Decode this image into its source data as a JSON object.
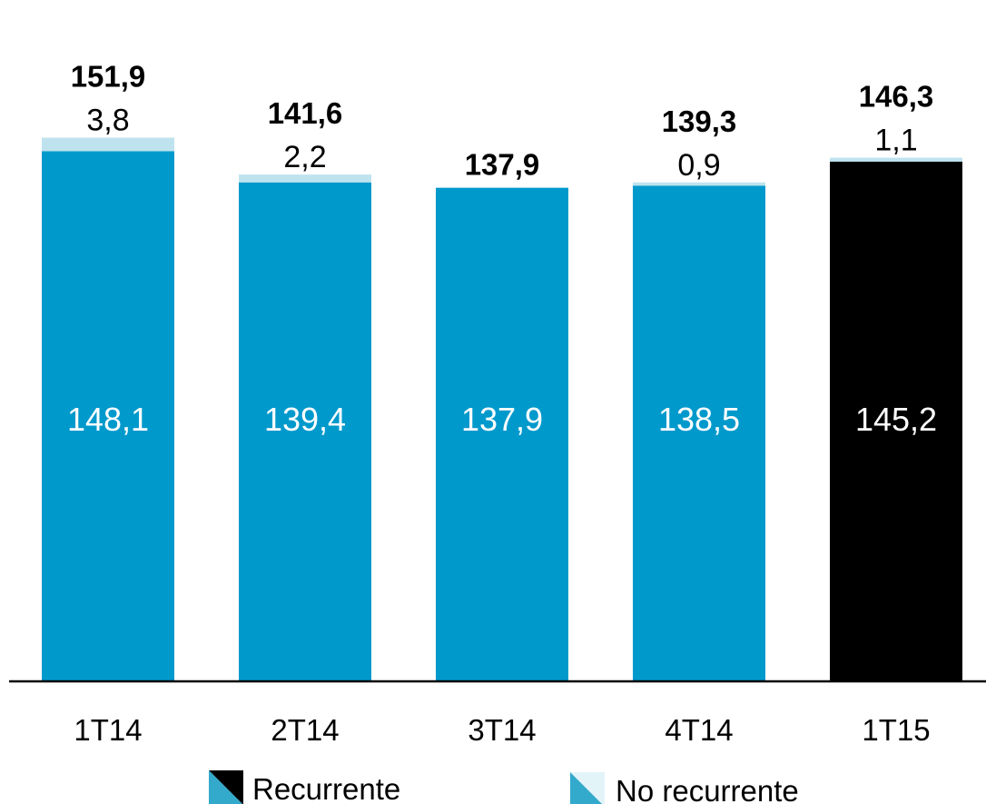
{
  "chart_data": {
    "type": "bar",
    "stacked": true,
    "categories": [
      "1T14",
      "2T14",
      "3T14",
      "4T14",
      "1T15"
    ],
    "series": [
      {
        "name": "Recurrente",
        "values": [
          148.1,
          139.4,
          137.9,
          138.5,
          145.2
        ],
        "labels": [
          "148,1",
          "139,4",
          "137,9",
          "138,5",
          "145,2"
        ]
      },
      {
        "name": "No recurrente",
        "values": [
          3.8,
          2.2,
          0.0,
          0.9,
          1.1
        ],
        "labels": [
          "3,8",
          "2,2",
          "",
          "0,9",
          "1,1"
        ]
      }
    ],
    "totals": [
      151.9,
      141.6,
      137.9,
      139.3,
      146.3
    ],
    "total_labels": [
      "151,9",
      "141,6",
      "137,9",
      "139,3",
      "146,3"
    ],
    "highlight_index": 4,
    "ylim": [
      0,
      160
    ],
    "grid": false,
    "legend_position": "bottom",
    "title": "",
    "xlabel": "",
    "ylabel": ""
  },
  "colors": {
    "recurring": "#0099CC",
    "recurring_highlight": "#000000",
    "non_recurring": "#BFE3EE",
    "legend_recurring_light": "#33AACC",
    "legend_nonrec_light": "#E3F4F9",
    "axis": "#000000",
    "inner_label": "#ffffff",
    "outer_label": "#000000"
  }
}
